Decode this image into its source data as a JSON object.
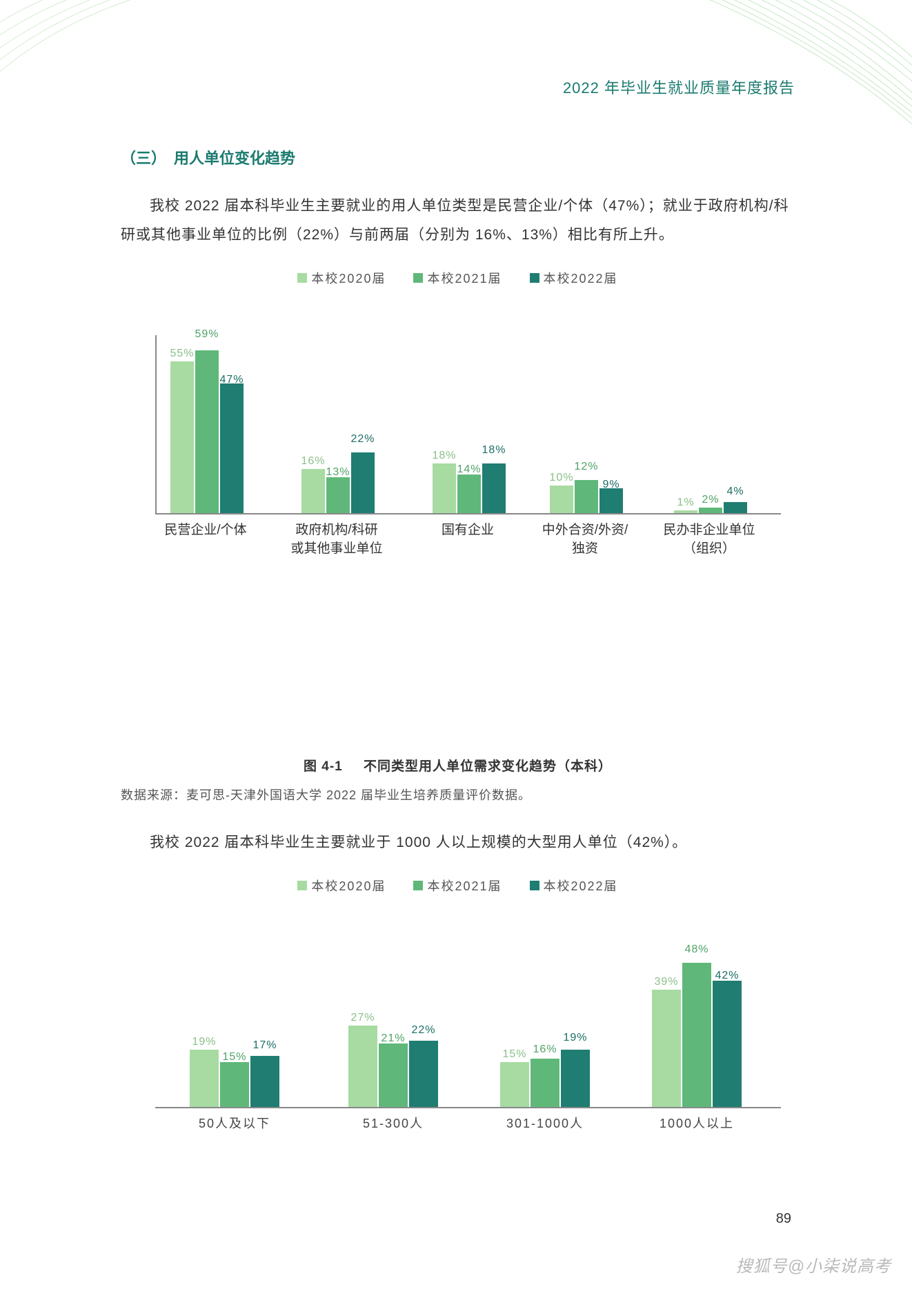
{
  "header": {
    "title": "2022 年毕业生就业质量年度报告"
  },
  "section": {
    "heading": "（三）　用人单位变化趋势",
    "paragraph1": "我校 2022 届本科毕业生主要就业的用人单位类型是民营企业/个体（47%）；就业于政府机构/科研或其他事业单位的比例（22%）与前两届（分别为 16%、13%）相比有所上升。",
    "paragraph2": "我校 2022 届本科毕业生主要就业于 1000 人以上规模的大型用人单位（42%）。"
  },
  "colors": {
    "series2020": "#a7dba2",
    "series2021": "#5fb879",
    "series2022": "#1f7d72",
    "label2020": "#8bbf89",
    "label2021": "#4fa267",
    "label2022": "#1a6e64",
    "axis": "#888888"
  },
  "chart1": {
    "type": "bar",
    "legend": [
      {
        "label": "本校2020届",
        "swatchStyle": "background:#a7dba2"
      },
      {
        "label": "本校2021届",
        "swatchStyle": "background:#5fb879"
      },
      {
        "label": "本校2022届",
        "swatchStyle": "background:#1f7d72"
      }
    ],
    "ylim": [
      0,
      65
    ],
    "plotHeightPx": 260,
    "barWidthPx": 34,
    "barGapPx": 2,
    "groupPositionsPx": [
      20,
      210,
      400,
      570,
      750
    ],
    "categories": [
      "民营企业/个体",
      "政府机构/科研\n或其他事业单位",
      "国有企业",
      "中外合资/外资/\n独资",
      "民办非企业单位\n（组织）"
    ],
    "labelOffsets": [
      [
        0,
        -12,
        6
      ],
      [
        0,
        4,
        -8
      ],
      [
        0,
        4,
        -8
      ],
      [
        0,
        -8,
        6
      ],
      [
        0,
        0,
        -4
      ]
    ],
    "series": [
      {
        "name": "2020",
        "color": "#a7dba2",
        "labelColor": "#8bbf89",
        "values": [
          55,
          16,
          18,
          10,
          1
        ]
      },
      {
        "name": "2021",
        "color": "#5fb879",
        "labelColor": "#4fa267",
        "values": [
          59,
          13,
          14,
          12,
          2
        ]
      },
      {
        "name": "2022",
        "color": "#1f7d72",
        "labelColor": "#1a6e64",
        "values": [
          47,
          22,
          18,
          9,
          4
        ]
      }
    ],
    "captionNum": "图 4-1",
    "captionText": "不同类型用人单位需求变化趋势（本科）",
    "source": "数据来源：麦可思-天津外国语大学 2022 届毕业生培养质量评价数据。"
  },
  "chart2": {
    "type": "bar",
    "legend": [
      {
        "label": "本校2020届",
        "swatchStyle": "background:#a7dba2"
      },
      {
        "label": "本校2021届",
        "swatchStyle": "background:#5fb879"
      },
      {
        "label": "本校2022届",
        "swatchStyle": "background:#1f7d72"
      }
    ],
    "ylim": [
      0,
      55
    ],
    "plotHeightPx": 240,
    "barWidthPx": 42,
    "barGapPx": 2,
    "groupPositionsPx": [
      50,
      280,
      500,
      720
    ],
    "categories": [
      "50人及以下",
      "51-300人",
      "301-1000人",
      "1000人以上"
    ],
    "labelOffsets": [
      [
        0,
        4,
        -4
      ],
      [
        0,
        4,
        -4
      ],
      [
        0,
        -2,
        -6
      ],
      [
        0,
        -8,
        4
      ]
    ],
    "series": [
      {
        "name": "2020",
        "color": "#a7dba2",
        "labelColor": "#8bbf89",
        "values": [
          19,
          27,
          15,
          39
        ]
      },
      {
        "name": "2021",
        "color": "#5fb879",
        "labelColor": "#4fa267",
        "values": [
          15,
          21,
          16,
          48
        ]
      },
      {
        "name": "2022",
        "color": "#1f7d72",
        "labelColor": "#1a6e64",
        "values": [
          17,
          22,
          19,
          42
        ]
      }
    ]
  },
  "footer": {
    "pageNumber": "89",
    "watermark": "搜狐号@小柒说高考"
  }
}
